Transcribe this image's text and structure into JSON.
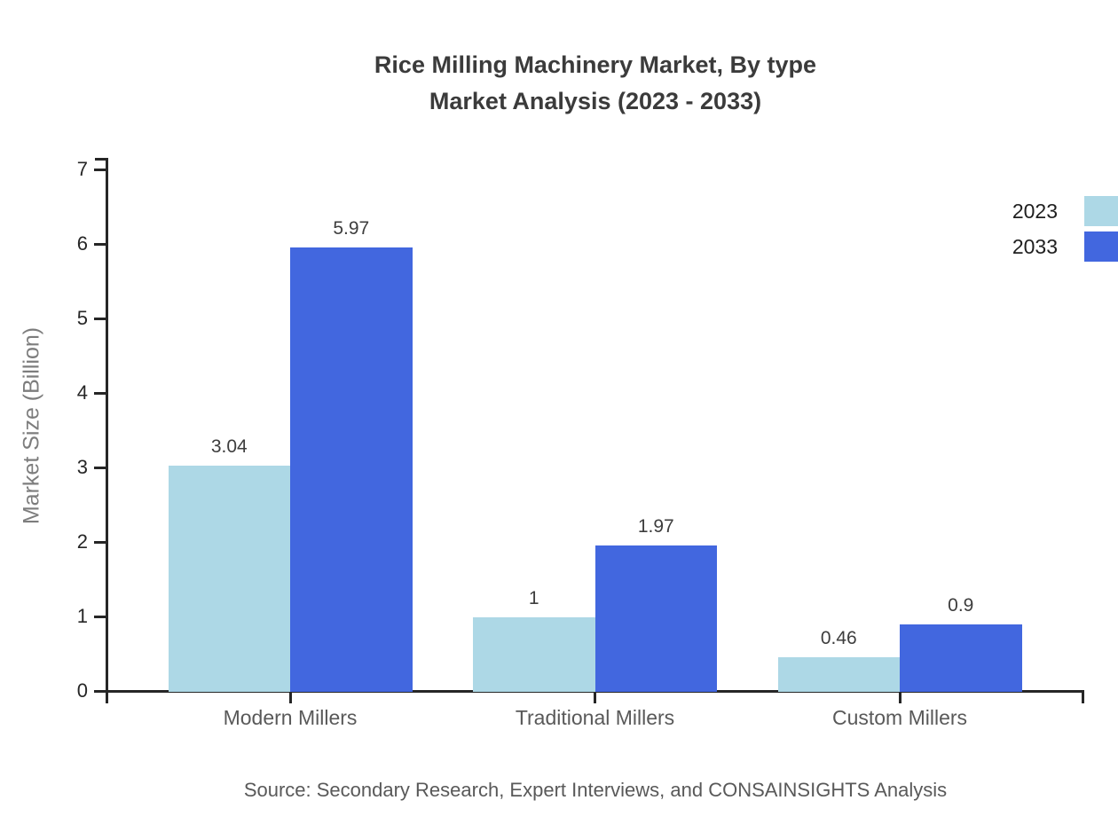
{
  "title": {
    "line1": "Rice Milling Machinery Market, By type",
    "line2": "Market Analysis (2023 - 2033)"
  },
  "source": "Source: Secondary Research, Expert Interviews, and CONSAINSIGHTS Analysis",
  "chart_data": {
    "type": "bar",
    "title": "Rice Milling Machinery Market, By type Market Analysis (2023 - 2033)",
    "categories": [
      "Modern Millers",
      "Traditional Millers",
      "Custom Millers"
    ],
    "series": [
      {
        "name": "2023",
        "color": "#ADD8E6",
        "values": [
          3.04,
          1,
          0.46
        ]
      },
      {
        "name": "2033",
        "color": "#4267DF",
        "values": [
          5.97,
          1.97,
          0.9
        ]
      }
    ],
    "xlabel": "",
    "ylabel": "Market Size (Billion)",
    "ylim": [
      0,
      7
    ],
    "yticks": [
      0,
      1,
      2,
      3,
      4,
      5,
      6,
      7
    ],
    "grid": false,
    "legend_position": "top-right",
    "axis_color": "#262626"
  }
}
